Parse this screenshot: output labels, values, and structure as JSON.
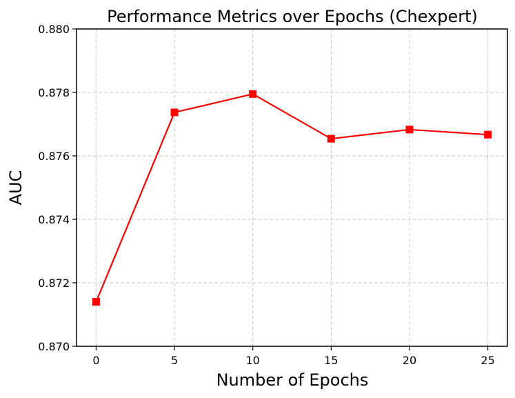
{
  "chart_data": {
    "type": "line",
    "title": "Performance Metrics over Epochs (Chexpert)",
    "xlabel": "Number of Epochs",
    "ylabel": "AUC",
    "xlim": [
      -1.25,
      26.25
    ],
    "ylim": [
      0.87,
      0.88
    ],
    "xticks": [
      0,
      5,
      10,
      15,
      20,
      25
    ],
    "xtick_labels": [
      "0",
      "5",
      "10",
      "15",
      "20",
      "25"
    ],
    "yticks": [
      0.87,
      0.872,
      0.874,
      0.876,
      0.878,
      0.88
    ],
    "ytick_labels": [
      "0.870",
      "0.872",
      "0.874",
      "0.876",
      "0.878",
      "0.880"
    ],
    "grid": true,
    "series": [
      {
        "name": "AUC",
        "color": "#ff0000",
        "marker": "square",
        "x": [
          0,
          5,
          10,
          15,
          20,
          25
        ],
        "values": [
          0.8714,
          0.87737,
          0.87795,
          0.87654,
          0.87683,
          0.87667
        ]
      }
    ]
  }
}
